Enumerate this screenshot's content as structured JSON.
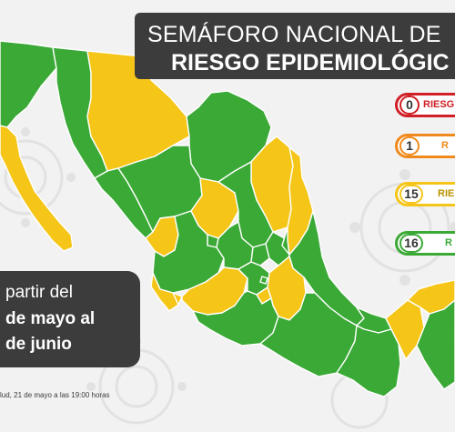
{
  "title": {
    "line1": "SEMÁFORO NACIONAL DE",
    "line2": "RIESGO EPIDEMIOLÓGIC"
  },
  "legend": [
    {
      "count": "0",
      "label": "RIESG",
      "color": "#d01f26"
    },
    {
      "count": "1",
      "label": "R",
      "color": "#f08a1c"
    },
    {
      "count": "15",
      "label": "RIE",
      "color": "#f5c518"
    },
    {
      "count": "16",
      "label": "R",
      "color": "#3aa935"
    }
  ],
  "date_box": {
    "line1": "partir del",
    "line2": "de mayo al",
    "line3": "de junio"
  },
  "footnote": "lud, 21 de mayo a las 19:00 horas",
  "colors": {
    "green": "#3aa935",
    "yellow": "#f5c518",
    "border": "#ffffff",
    "background": "#f2f2f2",
    "panel": "#3c3c3c"
  }
}
